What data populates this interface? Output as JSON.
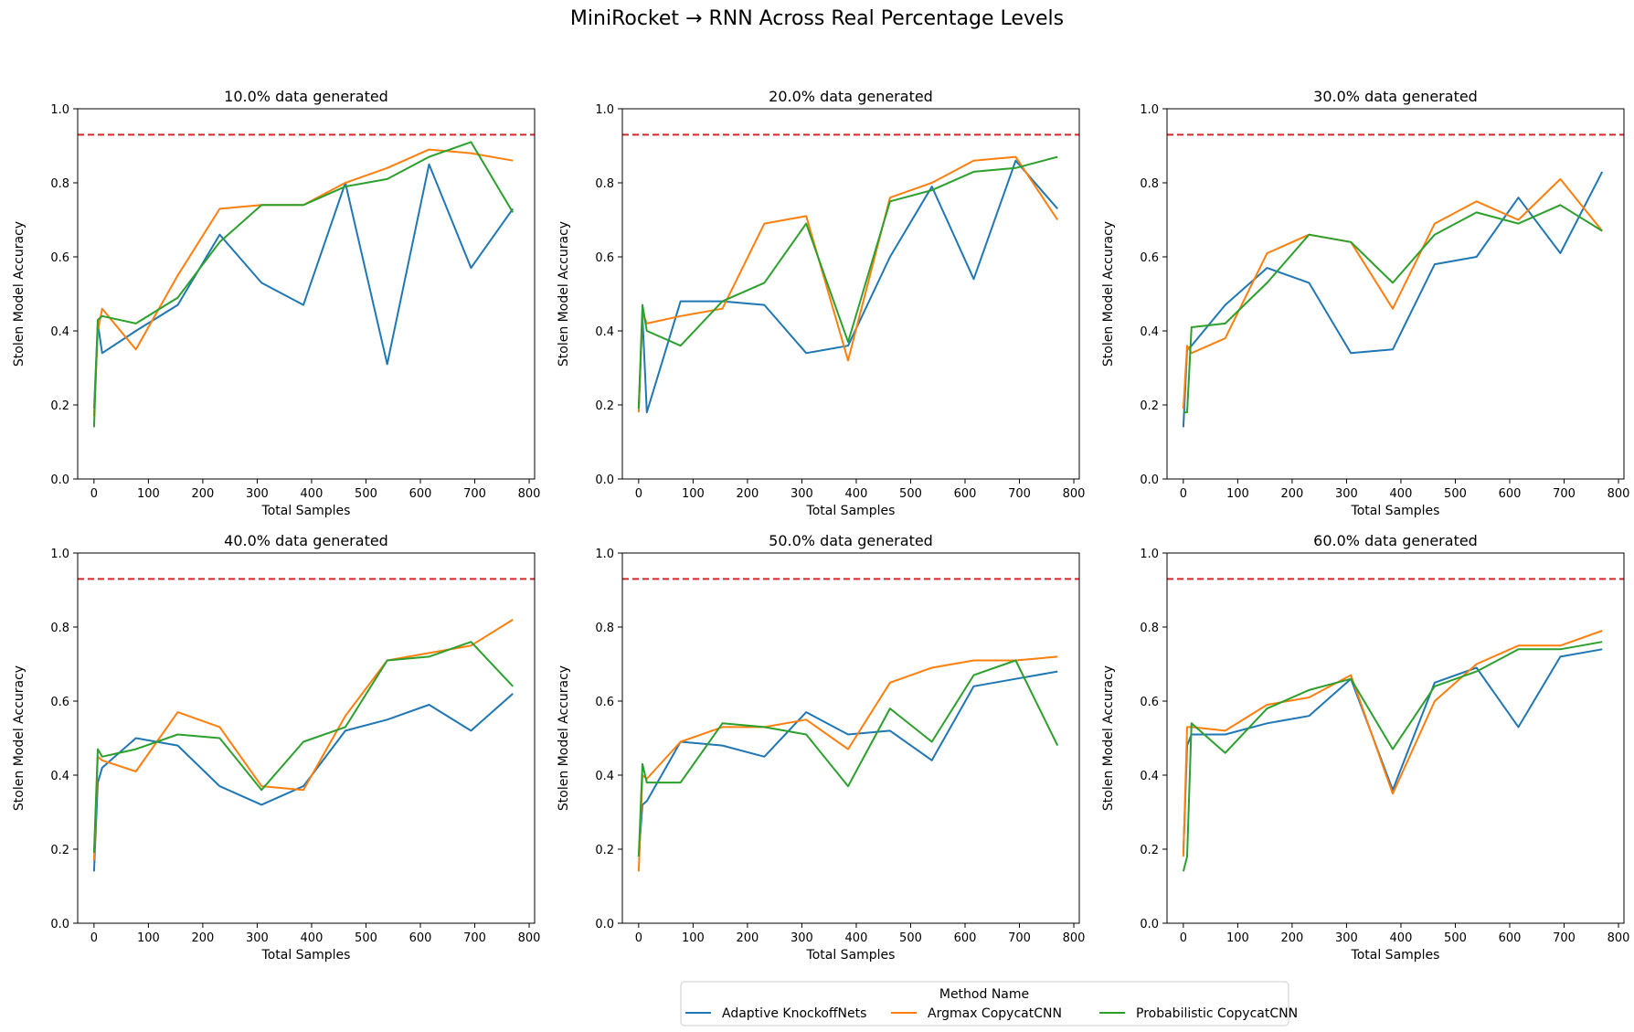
{
  "figure": {
    "title": "MiniRocket → RNN Across Real Percentage Levels",
    "legend_title": "Method Name",
    "legend_position": "bottom-center"
  },
  "colors": {
    "Adaptive KnockoffNets": "#1f77b4",
    "Argmax CopycatCNN": "#ff7f0e",
    "Probabilistic CopycatCNN": "#2ca02c",
    "reference_line": "#d62728"
  },
  "chart_data": [
    {
      "type": "line",
      "title": "10.0% data generated",
      "xlabel": "Total Samples",
      "ylabel": "Stolen Model Accuracy",
      "xlim": [
        -30,
        810
      ],
      "ylim": [
        0.0,
        1.0
      ],
      "xticks": [
        "0",
        "100",
        "200",
        "300",
        "400",
        "500",
        "600",
        "700",
        "800"
      ],
      "yticks": [
        "0.0",
        "0.2",
        "0.4",
        "0.6",
        "0.8",
        "1.0"
      ],
      "reference_line": 0.93,
      "grid": false,
      "x": [
        0,
        7,
        15,
        77,
        154,
        231,
        308,
        385,
        462,
        539,
        616,
        693,
        770
      ],
      "series": [
        {
          "name": "Adaptive KnockoffNets",
          "values": [
            0.19,
            0.42,
            0.34,
            0.4,
            0.47,
            0.66,
            0.53,
            0.47,
            0.8,
            0.31,
            0.85,
            0.57,
            0.73
          ]
        },
        {
          "name": "Argmax CopycatCNN",
          "values": [
            0.17,
            0.4,
            0.46,
            0.35,
            0.55,
            0.73,
            0.74,
            0.74,
            0.8,
            0.84,
            0.89,
            0.88,
            0.86
          ]
        },
        {
          "name": "Probabilistic CopycatCNN",
          "values": [
            0.14,
            0.43,
            0.44,
            0.42,
            0.49,
            0.64,
            0.74,
            0.74,
            0.79,
            0.81,
            0.87,
            0.91,
            0.72
          ]
        }
      ]
    },
    {
      "type": "line",
      "title": "20.0% data generated",
      "xlabel": "Total Samples",
      "ylabel": "Stolen Model Accuracy",
      "xlim": [
        -30,
        810
      ],
      "ylim": [
        0.0,
        1.0
      ],
      "xticks": [
        "0",
        "100",
        "200",
        "300",
        "400",
        "500",
        "600",
        "700",
        "800"
      ],
      "yticks": [
        "0.0",
        "0.2",
        "0.4",
        "0.6",
        "0.8",
        "1.0"
      ],
      "reference_line": 0.93,
      "grid": false,
      "x": [
        0,
        7,
        15,
        77,
        154,
        231,
        308,
        385,
        462,
        539,
        616,
        693,
        770
      ],
      "series": [
        {
          "name": "Adaptive KnockoffNets",
          "values": [
            0.19,
            0.44,
            0.18,
            0.48,
            0.48,
            0.47,
            0.34,
            0.36,
            0.6,
            0.79,
            0.54,
            0.86,
            0.73
          ]
        },
        {
          "name": "Argmax CopycatCNN",
          "values": [
            0.18,
            0.45,
            0.42,
            0.44,
            0.46,
            0.69,
            0.71,
            0.32,
            0.76,
            0.8,
            0.86,
            0.87,
            0.7
          ]
        },
        {
          "name": "Probabilistic CopycatCNN",
          "values": [
            0.19,
            0.47,
            0.4,
            0.36,
            0.48,
            0.53,
            0.69,
            0.37,
            0.75,
            0.78,
            0.83,
            0.84,
            0.87
          ]
        }
      ]
    },
    {
      "type": "line",
      "title": "30.0% data generated",
      "xlabel": "Total Samples",
      "ylabel": "Stolen Model Accuracy",
      "xlim": [
        -30,
        810
      ],
      "ylim": [
        0.0,
        1.0
      ],
      "xticks": [
        "0",
        "100",
        "200",
        "300",
        "400",
        "500",
        "600",
        "700",
        "800"
      ],
      "yticks": [
        "0.0",
        "0.2",
        "0.4",
        "0.6",
        "0.8",
        "1.0"
      ],
      "reference_line": 0.93,
      "grid": false,
      "x": [
        0,
        7,
        15,
        77,
        154,
        231,
        308,
        385,
        462,
        539,
        616,
        693,
        770
      ],
      "series": [
        {
          "name": "Adaptive KnockoffNets",
          "values": [
            0.14,
            0.35,
            0.36,
            0.47,
            0.57,
            0.53,
            0.34,
            0.35,
            0.58,
            0.6,
            0.76,
            0.61,
            0.83
          ]
        },
        {
          "name": "Argmax CopycatCNN",
          "values": [
            0.19,
            0.36,
            0.34,
            0.38,
            0.61,
            0.66,
            0.64,
            0.46,
            0.69,
            0.75,
            0.7,
            0.81,
            0.67
          ]
        },
        {
          "name": "Probabilistic CopycatCNN",
          "values": [
            0.18,
            0.18,
            0.41,
            0.42,
            0.53,
            0.66,
            0.64,
            0.53,
            0.66,
            0.72,
            0.69,
            0.74,
            0.67
          ]
        }
      ]
    },
    {
      "type": "line",
      "title": "40.0% data generated",
      "xlabel": "Total Samples",
      "ylabel": "Stolen Model Accuracy",
      "xlim": [
        -30,
        810
      ],
      "ylim": [
        0.0,
        1.0
      ],
      "xticks": [
        "0",
        "100",
        "200",
        "300",
        "400",
        "500",
        "600",
        "700",
        "800"
      ],
      "yticks": [
        "0.0",
        "0.2",
        "0.4",
        "0.6",
        "0.8",
        "1.0"
      ],
      "reference_line": 0.93,
      "grid": false,
      "x": [
        0,
        7,
        15,
        77,
        154,
        231,
        308,
        385,
        462,
        539,
        616,
        693,
        770
      ],
      "series": [
        {
          "name": "Adaptive KnockoffNets",
          "values": [
            0.14,
            0.38,
            0.42,
            0.5,
            0.48,
            0.37,
            0.32,
            0.37,
            0.52,
            0.55,
            0.59,
            0.52,
            0.62
          ]
        },
        {
          "name": "Argmax CopycatCNN",
          "values": [
            0.17,
            0.45,
            0.44,
            0.41,
            0.57,
            0.53,
            0.37,
            0.36,
            0.56,
            0.71,
            0.73,
            0.75,
            0.82
          ]
        },
        {
          "name": "Probabilistic CopycatCNN",
          "values": [
            0.19,
            0.47,
            0.45,
            0.47,
            0.51,
            0.5,
            0.36,
            0.49,
            0.53,
            0.71,
            0.72,
            0.76,
            0.64
          ]
        }
      ]
    },
    {
      "type": "line",
      "title": "50.0% data generated",
      "xlabel": "Total Samples",
      "ylabel": "Stolen Model Accuracy",
      "xlim": [
        -30,
        810
      ],
      "ylim": [
        0.0,
        1.0
      ],
      "xticks": [
        "0",
        "100",
        "200",
        "300",
        "400",
        "500",
        "600",
        "700",
        "800"
      ],
      "yticks": [
        "0.0",
        "0.2",
        "0.4",
        "0.6",
        "0.8",
        "1.0"
      ],
      "reference_line": 0.93,
      "grid": false,
      "x": [
        0,
        7,
        15,
        77,
        154,
        231,
        308,
        385,
        462,
        539,
        616,
        693,
        770
      ],
      "series": [
        {
          "name": "Adaptive KnockoffNets",
          "values": [
            0.18,
            0.32,
            0.33,
            0.49,
            0.48,
            0.45,
            0.57,
            0.51,
            0.52,
            0.44,
            0.64,
            0.66,
            0.68
          ]
        },
        {
          "name": "Argmax CopycatCNN",
          "values": [
            0.14,
            0.4,
            0.39,
            0.49,
            0.53,
            0.53,
            0.55,
            0.47,
            0.65,
            0.69,
            0.71,
            0.71,
            0.72
          ]
        },
        {
          "name": "Probabilistic CopycatCNN",
          "values": [
            0.18,
            0.43,
            0.38,
            0.38,
            0.54,
            0.53,
            0.51,
            0.37,
            0.58,
            0.49,
            0.67,
            0.71,
            0.48
          ]
        }
      ]
    },
    {
      "type": "line",
      "title": "60.0% data generated",
      "xlabel": "Total Samples",
      "ylabel": "Stolen Model Accuracy",
      "xlim": [
        -30,
        810
      ],
      "ylim": [
        0.0,
        1.0
      ],
      "xticks": [
        "0",
        "100",
        "200",
        "300",
        "400",
        "500",
        "600",
        "700",
        "800"
      ],
      "yticks": [
        "0.0",
        "0.2",
        "0.4",
        "0.6",
        "0.8",
        "1.0"
      ],
      "reference_line": 0.93,
      "grid": false,
      "x": [
        0,
        7,
        15,
        77,
        154,
        231,
        308,
        385,
        462,
        539,
        616,
        693,
        770
      ],
      "series": [
        {
          "name": "Adaptive KnockoffNets",
          "values": [
            0.19,
            0.48,
            0.51,
            0.51,
            0.54,
            0.56,
            0.66,
            0.36,
            0.65,
            0.69,
            0.53,
            0.72,
            0.74
          ]
        },
        {
          "name": "Argmax CopycatCNN",
          "values": [
            0.18,
            0.53,
            0.53,
            0.52,
            0.59,
            0.61,
            0.67,
            0.35,
            0.6,
            0.7,
            0.75,
            0.75,
            0.79
          ]
        },
        {
          "name": "Probabilistic CopycatCNN",
          "values": [
            0.14,
            0.18,
            0.54,
            0.46,
            0.58,
            0.63,
            0.66,
            0.47,
            0.64,
            0.68,
            0.74,
            0.74,
            0.76
          ]
        }
      ]
    }
  ]
}
